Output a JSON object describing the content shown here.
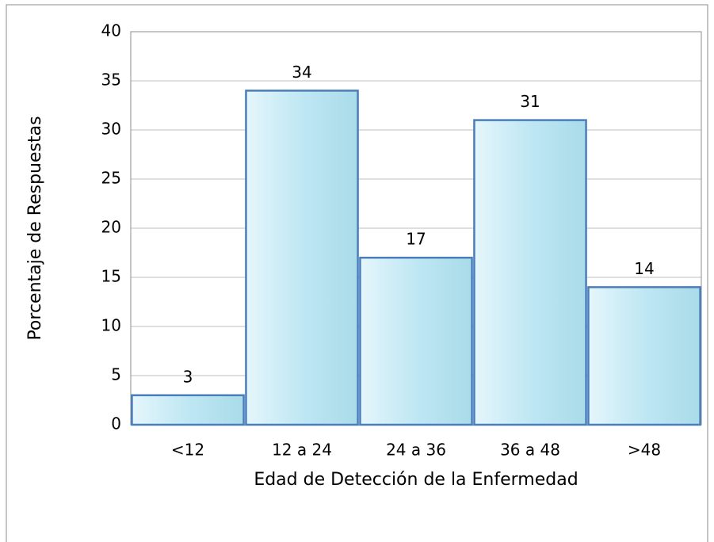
{
  "chart_data": {
    "type": "bar",
    "xlabel": "Edad de Detección de la Enfermedad",
    "ylabel": "Porcentaje de Respuestas",
    "categories": [
      "<12",
      "12 a 24",
      "24 a 36",
      "36 a 48",
      ">48"
    ],
    "values": [
      3,
      34,
      17,
      31,
      14
    ],
    "color": "#c6eaf5",
    "edgecolor": "#4a7ebb",
    "ylim": [
      0,
      40
    ],
    "yticks": [
      0,
      5,
      10,
      15,
      20,
      25,
      30,
      35,
      40
    ],
    "grid": true
  }
}
